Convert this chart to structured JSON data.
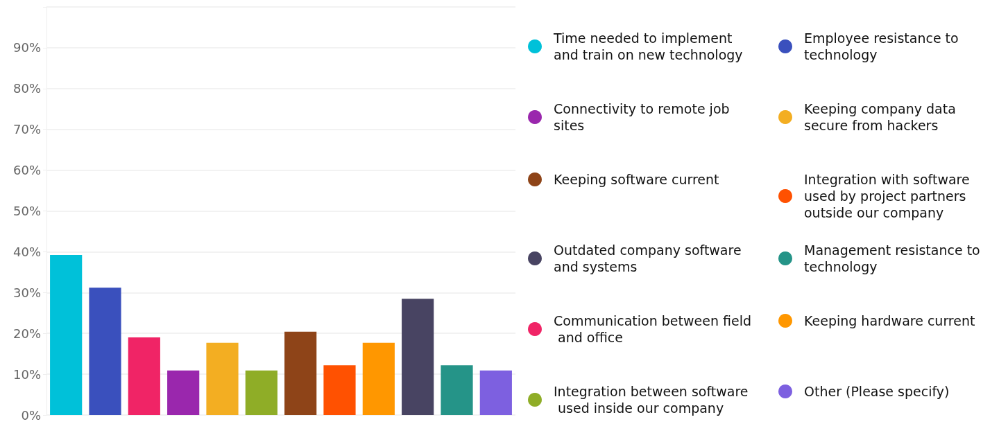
{
  "chart_data": {
    "type": "bar",
    "categories": [
      null,
      null,
      null,
      null,
      null,
      null,
      null,
      null,
      null,
      null,
      null,
      null
    ],
    "series": [
      {
        "name": "Time needed to implement and train on new technology",
        "color": "#00c1d9",
        "values": [
          39.2,
          null,
          null,
          null,
          null,
          null,
          null,
          null,
          null,
          null,
          null,
          null
        ]
      },
      {
        "name": "Employee resistance to technology",
        "color": "#3a50bd",
        "values": [
          null,
          31.2,
          null,
          null,
          null,
          null,
          null,
          null,
          null,
          null,
          null,
          null
        ]
      },
      {
        "name": "Connectivity to remote job sites",
        "color": "#9a27ad",
        "values": [
          null,
          null,
          null,
          10.9,
          null,
          null,
          null,
          null,
          null,
          null,
          null,
          null
        ]
      },
      {
        "name": "Keeping company data secure from hackers",
        "color": "#f3ae22",
        "values": [
          null,
          null,
          null,
          null,
          17.7,
          null,
          null,
          null,
          null,
          null,
          null,
          null
        ]
      },
      {
        "name": "Keeping software current",
        "color": "#8e4418",
        "values": [
          null,
          null,
          null,
          null,
          null,
          null,
          20.4,
          null,
          null,
          null,
          null,
          null
        ]
      },
      {
        "name": "Integration with software used by project partners outside our company",
        "color": "#ff5101",
        "values": [
          null,
          null,
          null,
          null,
          null,
          null,
          null,
          12.2,
          null,
          null,
          null,
          null
        ]
      },
      {
        "name": "Outdated company software and systems",
        "color": "#484462",
        "values": [
          null,
          null,
          null,
          null,
          null,
          null,
          null,
          null,
          null,
          28.5,
          null,
          null
        ]
      },
      {
        "name": "Management resistance to technology",
        "color": "#259488",
        "values": [
          null,
          null,
          null,
          null,
          null,
          null,
          null,
          null,
          null,
          null,
          12.2,
          null
        ]
      },
      {
        "name": "Communication between field and office",
        "color": "#f02466",
        "values": [
          null,
          null,
          19.0,
          null,
          null,
          null,
          null,
          null,
          null,
          null,
          null,
          null
        ]
      },
      {
        "name": "Keeping hardware current",
        "color": "#ff9700",
        "values": [
          null,
          null,
          null,
          null,
          null,
          null,
          null,
          null,
          17.7,
          null,
          null,
          null
        ]
      },
      {
        "name": "Integration between software used inside our company",
        "color": "#8fad27",
        "values": [
          null,
          null,
          null,
          null,
          null,
          10.9,
          null,
          null,
          null,
          null,
          null,
          null
        ]
      },
      {
        "name": "Other (Please specify)",
        "color": "#7d60e0",
        "values": [
          null,
          null,
          null,
          null,
          null,
          null,
          null,
          null,
          null,
          null,
          null,
          10.9
        ]
      }
    ],
    "ylim": [
      0,
      100
    ],
    "yticks": [
      {
        "value": 0,
        "label": "0%"
      },
      {
        "value": 10,
        "label": "10%"
      },
      {
        "value": 20,
        "label": "20%"
      },
      {
        "value": 30,
        "label": "30%"
      },
      {
        "value": 40,
        "label": "40%"
      },
      {
        "value": 50,
        "label": "50%"
      },
      {
        "value": 60,
        "label": "60%"
      },
      {
        "value": 70,
        "label": "70%"
      },
      {
        "value": 80,
        "label": "80%"
      },
      {
        "value": 90,
        "label": "90%"
      },
      {
        "value": 100,
        "label": null
      }
    ],
    "grid": "y",
    "legend": "right"
  }
}
